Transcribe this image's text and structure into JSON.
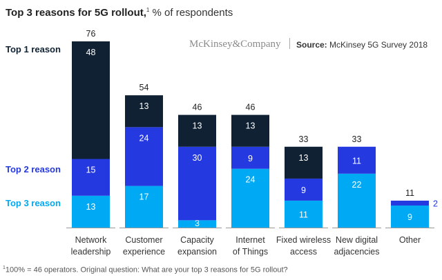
{
  "header": {
    "title_bold": "Top 3 reasons for 5G rollout,",
    "title_sup": "1",
    "title_rest": " % of respondents",
    "brand": "McKinsey&Company",
    "source_label": "Source:",
    "source_text": " McKinsey 5G Survey 2018"
  },
  "footnote": {
    "sup": "1",
    "text": "100% = 46 operators. Original question: What are your top 3 reasons for 5G rollout?"
  },
  "colors": {
    "top1": "#0f2132",
    "top2": "#2539e0",
    "top3": "#00a9f4",
    "axis": "#999999"
  },
  "chart_data": {
    "type": "bar",
    "stacked": true,
    "title": "Top 3 reasons for 5G rollout, % of respondents",
    "xlabel": "",
    "ylabel": "% of respondents",
    "ylim": [
      0,
      76
    ],
    "grid": false,
    "legend_placement": "left",
    "categories": [
      "Network leadership",
      "Customer experience",
      "Capacity expansion",
      "Internet of Things",
      "Fixed wireless access",
      "New digital adjacencies",
      "Other"
    ],
    "category_lines": [
      [
        "Network",
        "leadership"
      ],
      [
        "Customer",
        "experience"
      ],
      [
        "Capacity",
        "expansion"
      ],
      [
        "Internet",
        "of Things"
      ],
      [
        "Fixed wireless",
        "access"
      ],
      [
        "New digital",
        "adjacencies"
      ],
      [
        "Other",
        ""
      ]
    ],
    "series": [
      {
        "name": "Top 3 reason",
        "values": [
          13,
          17,
          3,
          24,
          11,
          22,
          9
        ]
      },
      {
        "name": "Top 2 reason",
        "values": [
          15,
          24,
          30,
          9,
          9,
          11,
          2
        ]
      },
      {
        "name": "Top 1 reason",
        "values": [
          48,
          13,
          13,
          13,
          13,
          0,
          0
        ]
      }
    ],
    "totals": [
      76,
      54,
      46,
      46,
      33,
      33,
      11
    ]
  }
}
